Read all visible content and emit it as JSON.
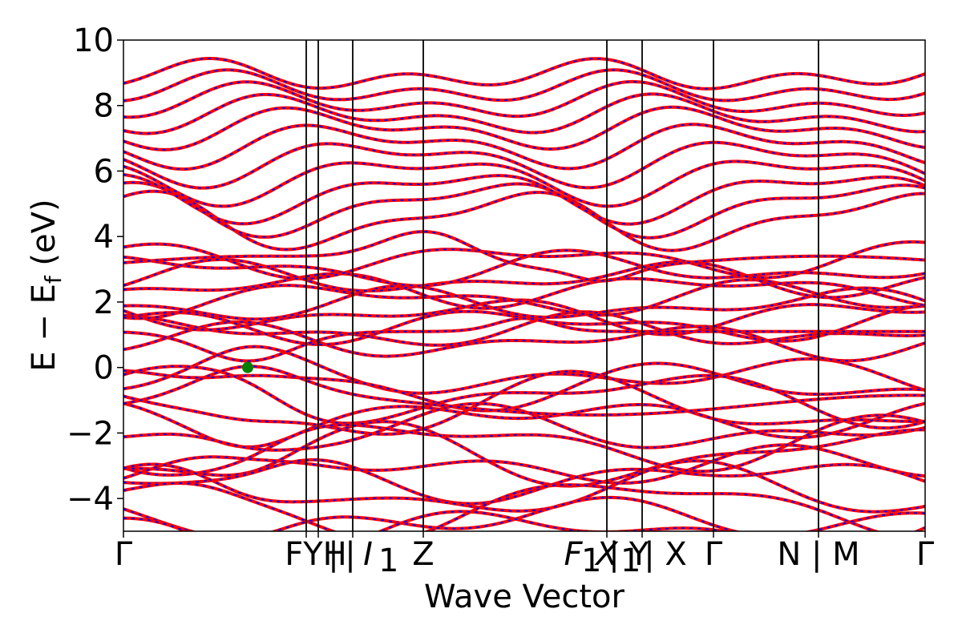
{
  "chart_data": {
    "type": "line",
    "title": "",
    "xlabel": "Wave Vector",
    "ylabel_main": "E − E",
    "ylabel_sub": "f",
    "ylabel_unit": "(eV)",
    "ylim": [
      -5,
      10
    ],
    "yticks": [
      10,
      8,
      6,
      4,
      2,
      0,
      -2,
      -4
    ],
    "ytick_labels": [
      "10",
      "8",
      "6",
      "4",
      "2",
      "0",
      "−2",
      "−4"
    ],
    "xlim": [
      0,
      1
    ],
    "high_symmetry_points": [
      {
        "x": 0.0,
        "label": "Γ"
      },
      {
        "x": 0.228,
        "label": "Y"
      },
      {
        "x": 0.243,
        "label": "H"
      },
      {
        "x": 0.286,
        "label": "H₁ | I₁"
      },
      {
        "x": 0.374,
        "label": "Z"
      },
      {
        "x": 0.603,
        "label": "F₁"
      },
      {
        "x": 0.647,
        "label": "X₁"
      },
      {
        "x": 0.736,
        "label": "Y | X"
      },
      {
        "x": 0.867,
        "label": "Γ"
      },
      {
        "x": 1.0,
        "label": "N | M"
      },
      {
        "x": 1.0,
        "label": "Γ"
      }
    ],
    "xtick_text": [
      "Γ",
      "FYH",
      "|",
      "|",
      "I",
      "1",
      "Z",
      "F",
      "1",
      "X",
      "|",
      "1",
      "Y",
      "| X",
      "Γ",
      "N | M",
      "Γ"
    ],
    "legend": "none",
    "grid": false,
    "series": [
      {
        "style": "solid",
        "color": "#ff0000"
      },
      {
        "style": "dashed",
        "color": "#0000ff"
      }
    ],
    "marker": {
      "x": 0.155,
      "y": 0.0,
      "color": "#008000"
    }
  }
}
